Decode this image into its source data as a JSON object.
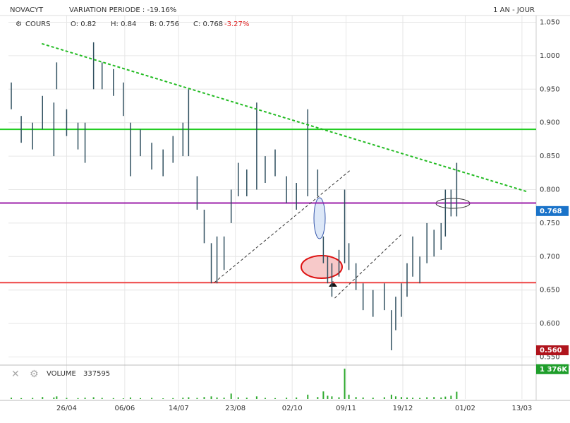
{
  "chart_data": {
    "type": "hilo",
    "title": "NOVACYT",
    "subtitle": "VARIATION PERIODE : -19.16%",
    "period": "1 AN - JOUR",
    "series_name": "COURS",
    "open_text": "O: 0.82",
    "high_text": "H: 0.84",
    "low_text": "B: 0.756",
    "close_text": "C: 0.768",
    "change_text": "-3.27%",
    "volume_name": "VOLUME",
    "volume_text": "337595",
    "color": "#2f4f5f",
    "x": [
      -39,
      -32,
      -24,
      -17,
      -9,
      -7,
      0,
      8,
      13,
      19,
      25,
      33,
      40,
      45,
      52,
      60,
      68,
      75,
      82,
      86,
      92,
      97,
      102,
      106,
      111,
      116,
      121,
      127,
      134,
      140,
      147,
      155,
      162,
      170,
      177,
      181,
      184,
      187,
      192,
      196,
      199,
      204,
      209,
      216,
      224,
      229,
      232,
      236,
      240,
      244,
      249,
      254,
      259,
      264,
      267,
      271,
      275
    ],
    "high": [
      0.96,
      0.91,
      0.9,
      0.94,
      0.93,
      0.99,
      0.92,
      0.9,
      0.9,
      1.02,
      0.99,
      0.98,
      0.96,
      0.9,
      0.89,
      0.87,
      0.86,
      0.88,
      0.9,
      0.95,
      0.82,
      0.77,
      0.72,
      0.73,
      0.73,
      0.8,
      0.84,
      0.83,
      0.93,
      0.85,
      0.86,
      0.82,
      0.81,
      0.92,
      0.83,
      0.73,
      0.7,
      0.69,
      0.71,
      0.8,
      0.72,
      0.69,
      0.66,
      0.65,
      0.66,
      0.62,
      0.64,
      0.66,
      0.69,
      0.73,
      0.7,
      0.75,
      0.74,
      0.75,
      0.8,
      0.8,
      0.84
    ],
    "low": [
      0.92,
      0.87,
      0.86,
      0.89,
      0.85,
      0.95,
      0.88,
      0.86,
      0.84,
      0.95,
      0.95,
      0.94,
      0.91,
      0.82,
      0.85,
      0.83,
      0.82,
      0.84,
      0.85,
      0.85,
      0.77,
      0.72,
      0.66,
      0.66,
      0.68,
      0.75,
      0.79,
      0.79,
      0.8,
      0.81,
      0.82,
      0.78,
      0.77,
      0.79,
      0.79,
      0.69,
      0.66,
      0.64,
      0.67,
      0.69,
      0.68,
      0.65,
      0.62,
      0.61,
      0.62,
      0.56,
      0.59,
      0.61,
      0.64,
      0.67,
      0.66,
      0.69,
      0.7,
      0.71,
      0.73,
      0.76,
      0.76
    ],
    "volume": [
      60000,
      40000,
      50000,
      90000,
      70000,
      120000,
      50000,
      40000,
      60000,
      80000,
      50000,
      40000,
      30000,
      70000,
      40000,
      50000,
      30000,
      40000,
      60000,
      80000,
      50000,
      90000,
      120000,
      70000,
      60000,
      250000,
      80000,
      60000,
      120000,
      50000,
      40000,
      60000,
      70000,
      200000,
      90000,
      350000,
      150000,
      120000,
      80000,
      1400000,
      200000,
      90000,
      70000,
      60000,
      80000,
      200000,
      120000,
      90000,
      70000,
      60000,
      50000,
      80000,
      90000,
      70000,
      110000,
      150000,
      337595
    ],
    "volume_color": "#2eaa2e",
    "volume_ylim": [
      0,
      1500000
    ],
    "xlim": [
      -41,
      331
    ],
    "ylim": [
      0.54,
      1.06
    ],
    "xticks": [
      {
        "value": 0,
        "label": "26/04"
      },
      {
        "value": 41,
        "label": "06/06"
      },
      {
        "value": 79,
        "label": "14/07"
      },
      {
        "value": 119,
        "label": "23/08"
      },
      {
        "value": 159,
        "label": "02/10"
      },
      {
        "value": 197,
        "label": "09/11"
      },
      {
        "value": 237,
        "label": "19/12"
      },
      {
        "value": 281,
        "label": "01/02"
      },
      {
        "value": 321,
        "label": "13/03"
      }
    ],
    "yticks": [
      {
        "value": 1.05,
        "label": "1.050"
      },
      {
        "value": 1.0,
        "label": "1.000"
      },
      {
        "value": 0.95,
        "label": "0.950"
      },
      {
        "value": 0.9,
        "label": "0.900"
      },
      {
        "value": 0.85,
        "label": "0.850"
      },
      {
        "value": 0.8,
        "label": "0.800"
      },
      {
        "value": 0.75,
        "label": "0.750"
      },
      {
        "value": 0.7,
        "label": "0.700"
      },
      {
        "value": 0.65,
        "label": "0.650"
      },
      {
        "value": 0.6,
        "label": "0.600"
      },
      {
        "value": 0.55,
        "label": "0.550"
      }
    ],
    "grid": true,
    "levels": [
      {
        "y": 0.89,
        "color": "#22cc22"
      },
      {
        "y": 0.78,
        "color": "#9b1fa8"
      },
      {
        "y": 0.661,
        "color": "#ee4444"
      }
    ],
    "trendlines": [
      {
        "x": [
          -17.5,
          324.5
        ],
        "y": [
          1.018,
          0.797
        ],
        "color": "#22bb22"
      },
      {
        "x": [
          104,
          200
        ],
        "y": [
          0.661,
          0.829
        ],
        "color": "#333333"
      },
      {
        "x": [
          189,
          236
        ],
        "y": [
          0.638,
          0.733
        ],
        "color": "#333333"
      }
    ],
    "markers": [
      {
        "value": 0.768,
        "label": "0.768",
        "color": "#1a73c9"
      },
      {
        "value": 0.56,
        "label": "0.560",
        "color": "#b0141c"
      }
    ],
    "volume_marker": {
      "value": 1376000,
      "label": "1 376K",
      "color": "#1f9e2b"
    }
  }
}
